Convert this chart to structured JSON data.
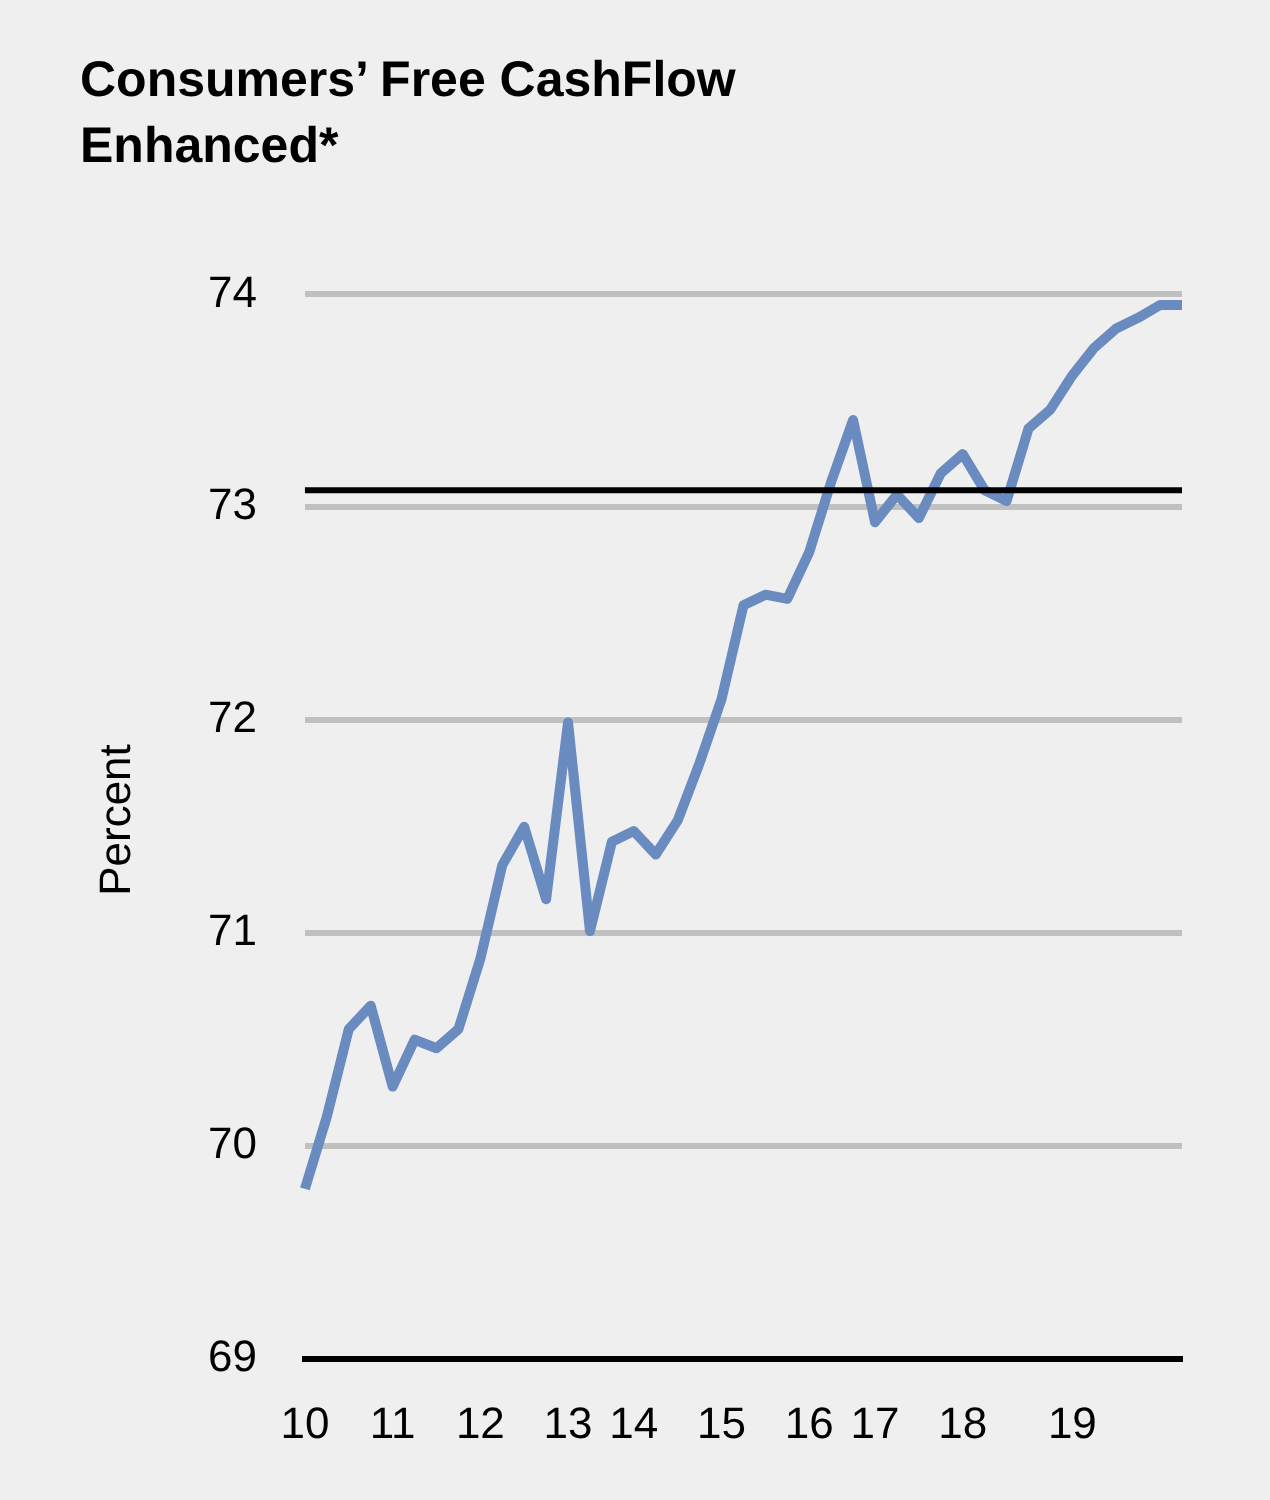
{
  "chart_data": {
    "type": "line",
    "title": "Consumers’ Free CashFlow Enhanced*",
    "ylabel": "Percent",
    "categories": [
      "10",
      null,
      null,
      null,
      "11",
      null,
      null,
      null,
      "12",
      null,
      null,
      null,
      "13",
      null,
      null,
      "14",
      null,
      null,
      null,
      "15",
      null,
      null,
      null,
      "16",
      null,
      null,
      "17",
      null,
      null,
      null,
      "18",
      null,
      null,
      null,
      null,
      "19",
      null,
      null,
      null,
      null,
      null
    ],
    "series": [
      {
        "color": "#6a8bbf",
        "values": [
          69.8,
          70.14,
          70.55,
          70.66,
          70.28,
          70.5,
          70.46,
          70.55,
          70.88,
          71.32,
          71.5,
          71.16,
          71.99,
          71.01,
          71.43,
          71.48,
          71.37,
          71.53,
          71.8,
          72.1,
          72.54,
          72.59,
          72.57,
          72.79,
          73.12,
          73.41,
          72.93,
          73.06,
          72.95,
          73.16,
          73.25,
          73.08,
          73.03,
          73.37,
          73.46,
          73.62,
          73.75,
          73.84,
          73.89,
          73.95,
          73.95
        ]
      }
    ],
    "ylim": [
      69,
      74
    ],
    "yticks": [
      69,
      70,
      71,
      72,
      73,
      74
    ],
    "ref_lines": [
      {
        "axis": "y",
        "value": 73.08,
        "color": "#000000"
      }
    ],
    "grid": "y",
    "legend": false,
    "marker": "none",
    "line_style": "solid"
  }
}
